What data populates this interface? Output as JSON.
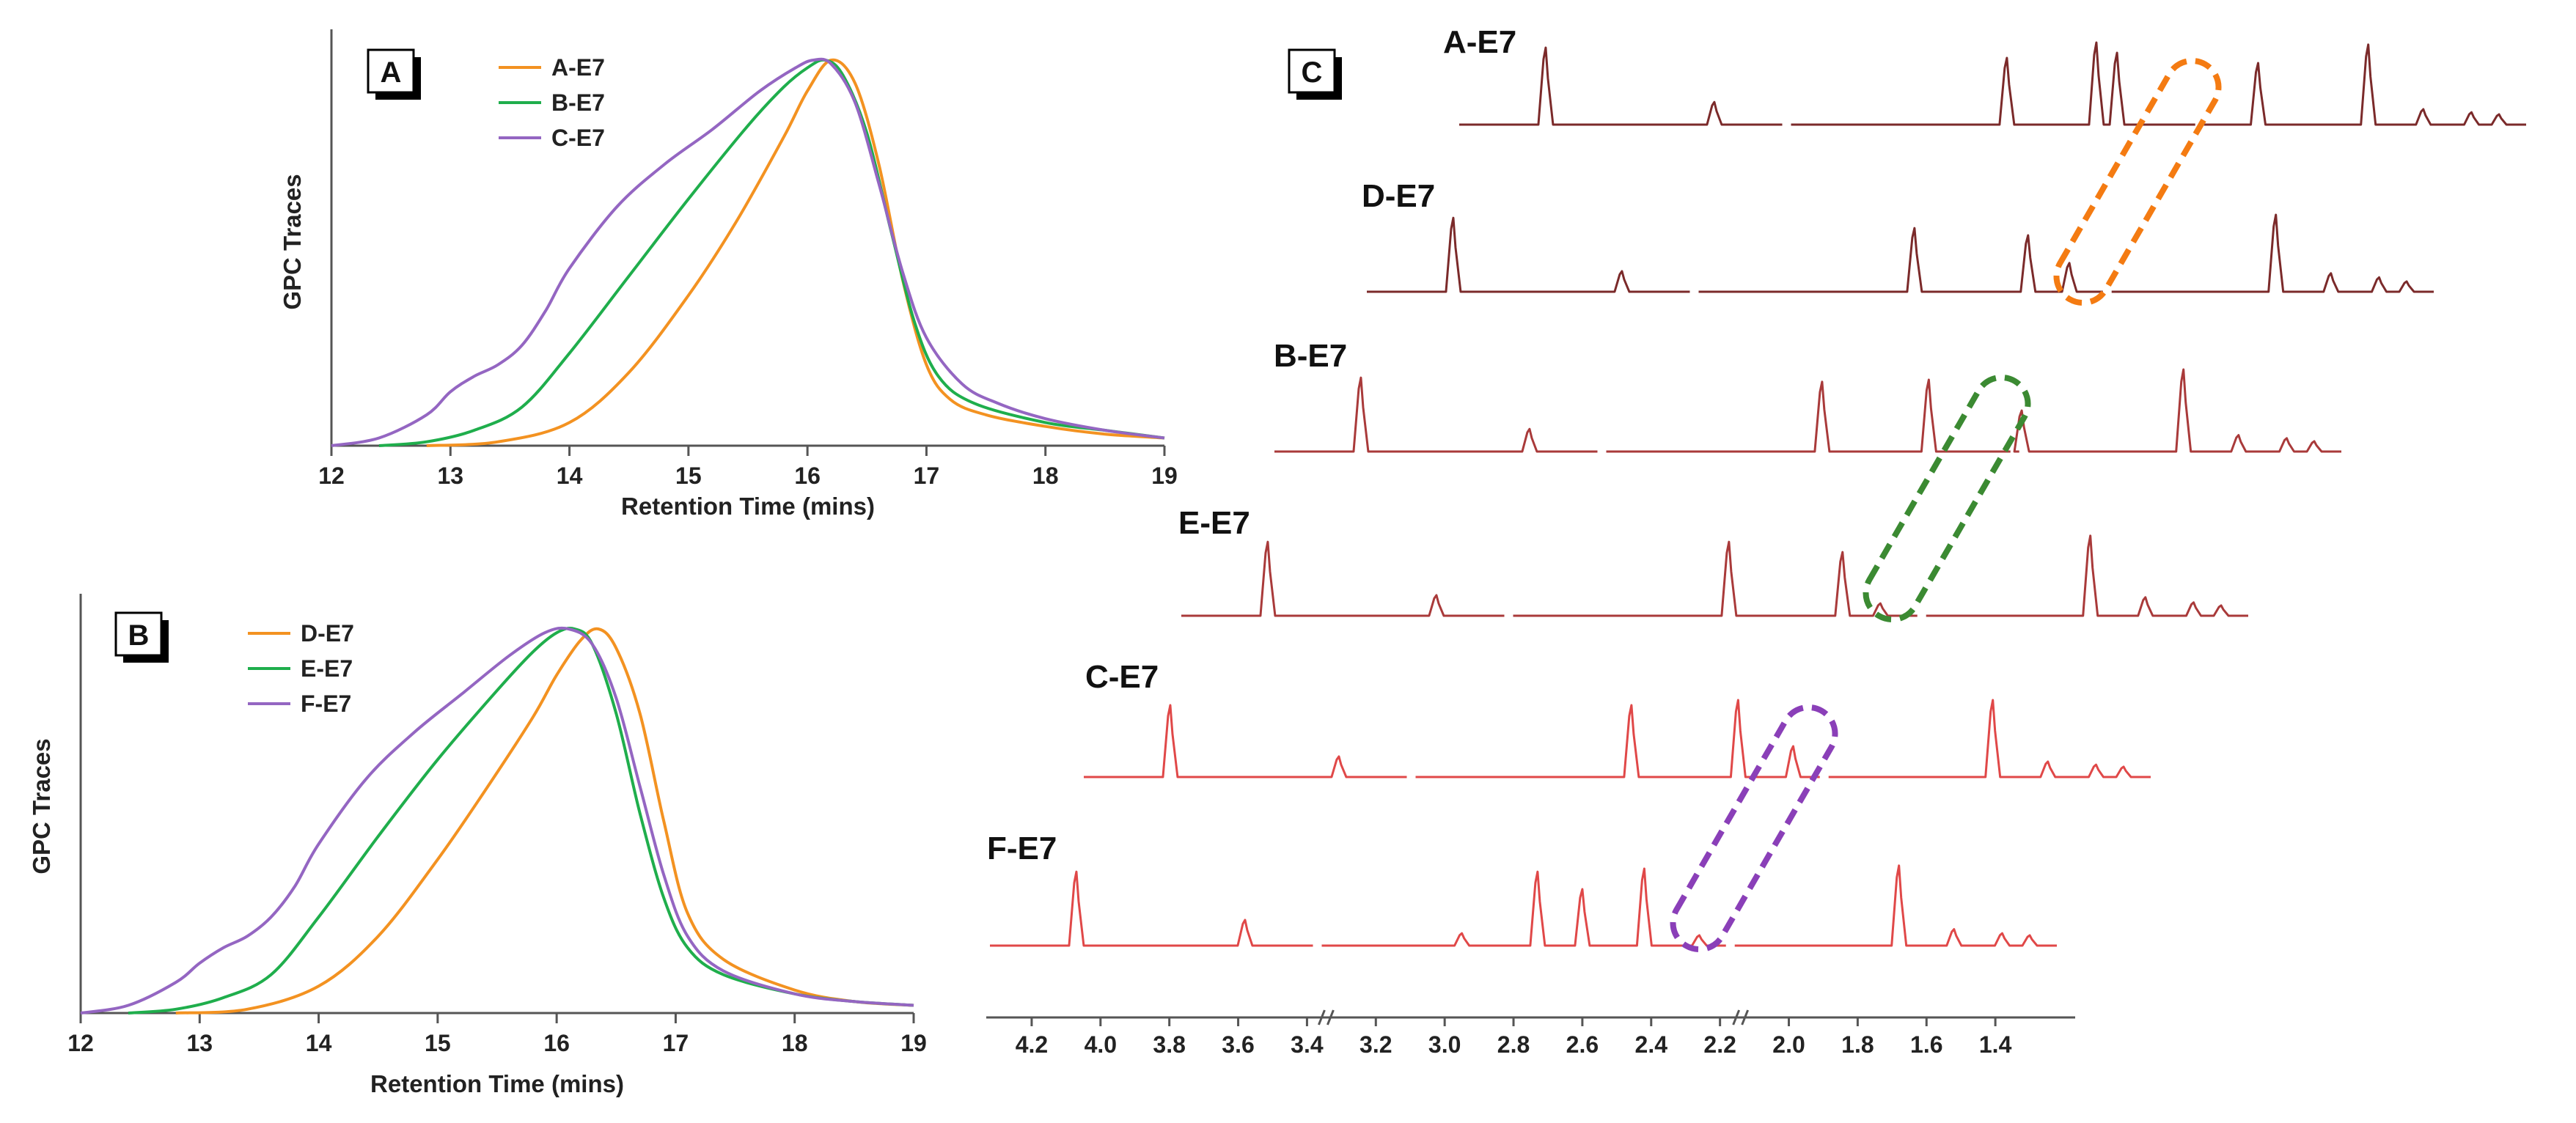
{
  "colors": {
    "orange": "#F39221",
    "green": "#1FAE4C",
    "purple": "#9466C2",
    "nmr_dark": "#7B2A2A",
    "nmr_mid": "#A93A3A",
    "nmr_red": "#E04848",
    "dash_orange": "#F47B12",
    "dash_green": "#3B8A32",
    "dash_purple": "#8A3FB8"
  },
  "chart_data": [
    {
      "id": "A",
      "type": "line",
      "panel_label": "A",
      "xlabel": "Retention Time (mins)",
      "ylabel": "GPC Traces",
      "xlim": [
        12,
        19
      ],
      "ylim": [
        0,
        1
      ],
      "x_ticks": [
        "12",
        "13",
        "14",
        "15",
        "16",
        "17",
        "18",
        "19"
      ],
      "legend_position": "top-left",
      "series": [
        {
          "name": "A-E7",
          "color_key": "orange",
          "x": [
            12.8,
            13.4,
            14.0,
            14.5,
            15.0,
            15.4,
            15.8,
            16.0,
            16.2,
            16.4,
            16.6,
            16.8,
            17.0,
            17.2,
            17.5,
            18.0,
            18.5,
            19.0
          ],
          "y": [
            0.0,
            0.01,
            0.06,
            0.19,
            0.39,
            0.58,
            0.8,
            0.92,
            1.0,
            0.94,
            0.73,
            0.43,
            0.21,
            0.12,
            0.08,
            0.05,
            0.03,
            0.02
          ]
        },
        {
          "name": "B-E7",
          "color_key": "green",
          "x": [
            12.4,
            12.8,
            13.2,
            13.6,
            14.0,
            14.5,
            15.0,
            15.5,
            15.8,
            16.0,
            16.15,
            16.3,
            16.5,
            16.7,
            16.9,
            17.1,
            17.4,
            18.0,
            18.5,
            19.0
          ],
          "y": [
            0.0,
            0.01,
            0.04,
            0.1,
            0.24,
            0.44,
            0.64,
            0.83,
            0.93,
            0.98,
            1.0,
            0.96,
            0.81,
            0.56,
            0.32,
            0.18,
            0.11,
            0.06,
            0.04,
            0.02
          ]
        },
        {
          "name": "C-E7",
          "color_key": "purple",
          "x": [
            12.0,
            12.4,
            12.8,
            13.0,
            13.2,
            13.4,
            13.6,
            13.8,
            14.0,
            14.4,
            14.8,
            15.2,
            15.6,
            15.9,
            16.05,
            16.2,
            16.4,
            16.6,
            16.8,
            17.0,
            17.3,
            17.6,
            18.0,
            18.5,
            19.0
          ],
          "y": [
            0.0,
            0.02,
            0.08,
            0.14,
            0.18,
            0.21,
            0.26,
            0.35,
            0.46,
            0.62,
            0.73,
            0.82,
            0.92,
            0.98,
            1.0,
            0.99,
            0.89,
            0.68,
            0.45,
            0.28,
            0.16,
            0.11,
            0.07,
            0.04,
            0.02
          ]
        }
      ]
    },
    {
      "id": "B",
      "type": "line",
      "panel_label": "B",
      "xlabel": "Retention Time (mins)",
      "ylabel": "GPC Traces",
      "xlim": [
        12,
        19
      ],
      "ylim": [
        0,
        1
      ],
      "x_ticks": [
        "12",
        "13",
        "14",
        "15",
        "16",
        "17",
        "18",
        "19"
      ],
      "legend_position": "top-left",
      "series": [
        {
          "name": "D-E7",
          "color_key": "orange",
          "x": [
            12.8,
            13.4,
            14.0,
            14.5,
            15.0,
            15.4,
            15.8,
            16.0,
            16.2,
            16.35,
            16.5,
            16.7,
            16.9,
            17.1,
            17.4,
            18.0,
            18.5,
            19.0
          ],
          "y": [
            0.0,
            0.01,
            0.07,
            0.2,
            0.4,
            0.58,
            0.77,
            0.88,
            0.97,
            1.0,
            0.95,
            0.78,
            0.5,
            0.26,
            0.14,
            0.06,
            0.03,
            0.02
          ]
        },
        {
          "name": "E-E7",
          "color_key": "green",
          "x": [
            12.4,
            12.8,
            13.2,
            13.6,
            14.0,
            14.5,
            15.0,
            15.5,
            15.8,
            16.0,
            16.15,
            16.3,
            16.5,
            16.7,
            16.9,
            17.1,
            17.4,
            18.0,
            18.5,
            19.0
          ],
          "y": [
            0.0,
            0.01,
            0.04,
            0.1,
            0.25,
            0.46,
            0.66,
            0.84,
            0.94,
            0.99,
            1.0,
            0.96,
            0.78,
            0.52,
            0.3,
            0.17,
            0.1,
            0.05,
            0.03,
            0.02
          ]
        },
        {
          "name": "F-E7",
          "color_key": "purple",
          "x": [
            12.0,
            12.4,
            12.8,
            13.0,
            13.2,
            13.4,
            13.6,
            13.8,
            14.0,
            14.4,
            14.8,
            15.2,
            15.6,
            15.9,
            16.1,
            16.3,
            16.5,
            16.7,
            16.9,
            17.1,
            17.4,
            18.0,
            18.5,
            19.0
          ],
          "y": [
            0.0,
            0.02,
            0.08,
            0.13,
            0.17,
            0.2,
            0.25,
            0.33,
            0.44,
            0.61,
            0.73,
            0.83,
            0.93,
            0.99,
            1.0,
            0.96,
            0.82,
            0.59,
            0.36,
            0.2,
            0.11,
            0.05,
            0.03,
            0.02
          ]
        }
      ]
    },
    {
      "id": "C",
      "type": "line",
      "panel_label": "C",
      "xlabel": "",
      "ylabel": "",
      "xlim": [
        4.3,
        1.2
      ],
      "x_ticks": [
        "4.2",
        "4.0",
        "3.8",
        "3.6",
        "3.4",
        "3.2",
        "3.0",
        "2.8",
        "2.6",
        "2.4",
        "2.2",
        "2.0",
        "1.8",
        "1.6",
        "1.4"
      ],
      "axis_breaks_after": [
        "3.4",
        "2.2"
      ],
      "spectra": [
        {
          "name": "A-E7",
          "color_key": "nmr_dark",
          "offset_ppm": -0.9,
          "peaks": [
            [
              4.07,
              0.75
            ],
            [
              3.58,
              0.22
            ],
            [
              2.73,
              0.65
            ],
            [
              2.47,
              0.8
            ],
            [
              2.41,
              0.7
            ],
            [
              2.0,
              0.6
            ],
            [
              1.68,
              0.78
            ],
            [
              1.52,
              0.15
            ],
            [
              1.38,
              0.12
            ],
            [
              1.3,
              0.1
            ]
          ]
        },
        {
          "name": "D-E7",
          "color_key": "nmr_dark",
          "offset_ppm": -0.72,
          "peaks": [
            [
              4.07,
              0.72
            ],
            [
              3.58,
              0.2
            ],
            [
              2.73,
              0.62
            ],
            [
              2.4,
              0.55
            ],
            [
              2.28,
              0.28
            ],
            [
              1.68,
              0.75
            ],
            [
              1.52,
              0.18
            ],
            [
              1.38,
              0.14
            ],
            [
              1.3,
              0.1
            ]
          ]
        },
        {
          "name": "B-E7",
          "color_key": "nmr_mid",
          "offset_ppm": -0.54,
          "peaks": [
            [
              4.07,
              0.72
            ],
            [
              3.58,
              0.22
            ],
            [
              2.73,
              0.68
            ],
            [
              2.42,
              0.7
            ],
            [
              2.15,
              0.4
            ],
            [
              1.68,
              0.8
            ],
            [
              1.52,
              0.16
            ],
            [
              1.38,
              0.13
            ],
            [
              1.3,
              0.1
            ]
          ]
        },
        {
          "name": "E-E7",
          "color_key": "nmr_mid",
          "offset_ppm": -0.36,
          "peaks": [
            [
              4.07,
              0.72
            ],
            [
              3.58,
              0.2
            ],
            [
              2.73,
              0.72
            ],
            [
              2.4,
              0.62
            ],
            [
              2.29,
              0.12
            ],
            [
              1.68,
              0.78
            ],
            [
              1.52,
              0.18
            ],
            [
              1.38,
              0.13
            ],
            [
              1.3,
              0.1
            ]
          ]
        },
        {
          "name": "C-E7",
          "color_key": "nmr_red",
          "offset_ppm": -0.18,
          "peaks": [
            [
              4.07,
              0.7
            ],
            [
              3.58,
              0.2
            ],
            [
              2.73,
              0.7
            ],
            [
              2.42,
              0.75
            ],
            [
              2.26,
              0.3
            ],
            [
              1.68,
              0.75
            ],
            [
              1.52,
              0.15
            ],
            [
              1.38,
              0.12
            ],
            [
              1.3,
              0.1
            ]
          ]
        },
        {
          "name": "F-E7",
          "color_key": "nmr_red",
          "offset_ppm": 0.0,
          "peaks": [
            [
              4.07,
              0.72
            ],
            [
              3.58,
              0.25
            ],
            [
              2.95,
              0.12
            ],
            [
              2.73,
              0.72
            ],
            [
              2.6,
              0.55
            ],
            [
              2.42,
              0.75
            ],
            [
              2.26,
              0.1
            ],
            [
              1.68,
              0.78
            ],
            [
              1.52,
              0.16
            ],
            [
              1.38,
              0.12
            ],
            [
              1.3,
              0.1
            ]
          ]
        }
      ],
      "annotations": [
        {
          "type": "dashed-oval",
          "color_key": "dash_orange",
          "encloses": [
            "A-E7",
            "D-E7"
          ]
        },
        {
          "type": "dashed-oval",
          "color_key": "dash_green",
          "encloses": [
            "B-E7",
            "E-E7"
          ]
        },
        {
          "type": "dashed-oval",
          "color_key": "dash_purple",
          "encloses": [
            "C-E7",
            "F-E7"
          ]
        }
      ]
    }
  ]
}
